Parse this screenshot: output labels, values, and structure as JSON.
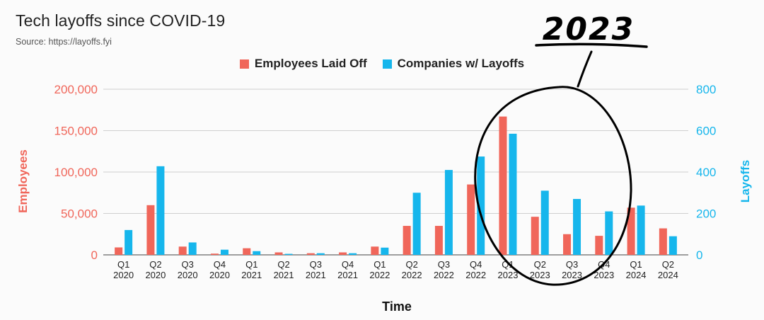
{
  "chart_data": {
    "type": "bar",
    "title": "Tech layoffs since COVID-19",
    "subtitle": "Source: https://layoffs.fyi",
    "xlabel": "Time",
    "ylabel_left": "Employees",
    "ylabel_right": "Layoffs",
    "ylim_left": [
      0,
      200000
    ],
    "ylim_right": [
      0,
      800
    ],
    "yticks_left": [
      "0",
      "50,000",
      "100,000",
      "150,000",
      "200,000"
    ],
    "yticks_right": [
      "0",
      "200",
      "400",
      "600",
      "800"
    ],
    "categories": [
      [
        "Q1",
        "2020"
      ],
      [
        "Q2",
        "2020"
      ],
      [
        "Q3",
        "2020"
      ],
      [
        "Q4",
        "2020"
      ],
      [
        "Q1",
        "2021"
      ],
      [
        "Q2",
        "2021"
      ],
      [
        "Q3",
        "2021"
      ],
      [
        "Q4",
        "2021"
      ],
      [
        "Q1",
        "2022"
      ],
      [
        "Q2",
        "2022"
      ],
      [
        "Q3",
        "2022"
      ],
      [
        "Q4",
        "2022"
      ],
      [
        "Q1",
        "2023"
      ],
      [
        "Q2",
        "2023"
      ],
      [
        "Q3",
        "2023"
      ],
      [
        "Q4",
        "2023"
      ],
      [
        "Q1",
        "2024"
      ],
      [
        "Q2",
        "2024"
      ]
    ],
    "series": [
      {
        "name": "Employees Laid Off",
        "axis": "left",
        "color": "#f0665a",
        "values": [
          9000,
          60000,
          10000,
          1500,
          8000,
          3000,
          2000,
          3000,
          10000,
          35000,
          35000,
          85000,
          167000,
          46000,
          25000,
          23000,
          57000,
          32000
        ]
      },
      {
        "name": "Companies w/ Layoffs",
        "axis": "right",
        "color": "#16b6ec",
        "values": [
          120,
          428,
          60,
          25,
          18,
          5,
          8,
          8,
          35,
          300,
          410,
          475,
          585,
          310,
          270,
          210,
          238,
          90
        ]
      }
    ],
    "grid": true,
    "legend_position": "top-center",
    "annotations": [
      {
        "text": "2023",
        "kind": "handwritten",
        "target": "Q1 2023 – Q4 2023"
      }
    ]
  }
}
